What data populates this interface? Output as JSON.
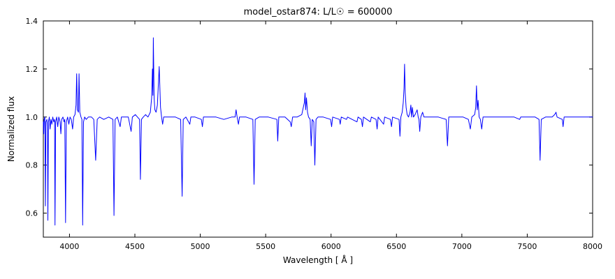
{
  "chart_data": {
    "type": "line",
    "title": "model_ostar874: L/L☉ = 600000",
    "xlabel": "Wavelength [ Å ]",
    "ylabel": "Normalized flux",
    "xlim": [
      3800,
      8000
    ],
    "ylim": [
      0.5,
      1.4
    ],
    "xticks": [
      4000,
      4500,
      5000,
      5500,
      6000,
      6500,
      7000,
      7500,
      8000
    ],
    "xtick_labels": [
      "4000",
      "4500",
      "5000",
      "5500",
      "6000",
      "6500",
      "7000",
      "7500",
      "8000"
    ],
    "yticks": [
      0.6,
      0.8,
      1.0,
      1.2,
      1.4
    ],
    "ytick_labels": [
      "0.6",
      "0.8",
      "1.0",
      "1.2",
      "1.4"
    ],
    "grid": false,
    "legend": null,
    "line_color": "#0000ff",
    "axis_color": "#000000",
    "background": "#ffffff",
    "series_name": "normalized-spectrum",
    "points": [
      [
        3800,
        0.98
      ],
      [
        3803,
        0.93
      ],
      [
        3806,
        0.99
      ],
      [
        3812,
        1.0
      ],
      [
        3816,
        0.63
      ],
      [
        3820,
        0.98
      ],
      [
        3827,
        0.99
      ],
      [
        3832,
        0.96
      ],
      [
        3835,
        0.57
      ],
      [
        3839,
        0.98
      ],
      [
        3846,
        1.0
      ],
      [
        3852,
        0.95
      ],
      [
        3858,
        0.99
      ],
      [
        3865,
        0.97
      ],
      [
        3872,
        1.0
      ],
      [
        3880,
        0.98
      ],
      [
        3886,
        0.99
      ],
      [
        3889,
        0.55
      ],
      [
        3894,
        0.98
      ],
      [
        3902,
        1.0
      ],
      [
        3910,
        0.96
      ],
      [
        3918,
        1.0
      ],
      [
        3928,
        0.98
      ],
      [
        3934,
        0.93
      ],
      [
        3940,
        0.99
      ],
      [
        3950,
        1.0
      ],
      [
        3958,
        0.98
      ],
      [
        3964,
        0.99
      ],
      [
        3970,
        0.56
      ],
      [
        3976,
        0.98
      ],
      [
        3986,
        1.0
      ],
      [
        3995,
        0.97
      ],
      [
        4004,
        1.0
      ],
      [
        4014,
        0.99
      ],
      [
        4024,
        0.95
      ],
      [
        4032,
        1.0
      ],
      [
        4042,
        1.01
      ],
      [
        4050,
        1.05
      ],
      [
        4055,
        1.18
      ],
      [
        4061,
        1.03
      ],
      [
        4068,
        1.02
      ],
      [
        4073,
        1.18
      ],
      [
        4079,
        1.02
      ],
      [
        4088,
        1.0
      ],
      [
        4095,
        0.99
      ],
      [
        4101,
        0.55
      ],
      [
        4107,
        0.98
      ],
      [
        4116,
        1.0
      ],
      [
        4128,
        0.99
      ],
      [
        4144,
        1.0
      ],
      [
        4168,
        1.0
      ],
      [
        4186,
        0.99
      ],
      [
        4200,
        0.82
      ],
      [
        4212,
        0.99
      ],
      [
        4230,
        1.0
      ],
      [
        4262,
        0.99
      ],
      [
        4300,
        1.0
      ],
      [
        4332,
        0.99
      ],
      [
        4340,
        0.59
      ],
      [
        4349,
        0.99
      ],
      [
        4366,
        1.0
      ],
      [
        4387,
        0.96
      ],
      [
        4397,
        1.0
      ],
      [
        4420,
        1.0
      ],
      [
        4450,
        1.0
      ],
      [
        4471,
        0.94
      ],
      [
        4481,
        1.0
      ],
      [
        4504,
        1.01
      ],
      [
        4520,
        1.0
      ],
      [
        4536,
        0.99
      ],
      [
        4542,
        0.74
      ],
      [
        4550,
        0.99
      ],
      [
        4564,
        1.0
      ],
      [
        4582,
        1.01
      ],
      [
        4600,
        1.0
      ],
      [
        4618,
        1.02
      ],
      [
        4628,
        1.08
      ],
      [
        4634,
        1.2
      ],
      [
        4638,
        1.09
      ],
      [
        4641,
        1.33
      ],
      [
        4647,
        1.08
      ],
      [
        4653,
        1.03
      ],
      [
        4662,
        1.02
      ],
      [
        4672,
        1.05
      ],
      [
        4686,
        1.21
      ],
      [
        4696,
        1.04
      ],
      [
        4704,
        1.0
      ],
      [
        4712,
        0.97
      ],
      [
        4720,
        1.0
      ],
      [
        4760,
        1.0
      ],
      [
        4810,
        1.0
      ],
      [
        4850,
        0.99
      ],
      [
        4861,
        0.67
      ],
      [
        4870,
        0.99
      ],
      [
        4890,
        1.0
      ],
      [
        4920,
        0.97
      ],
      [
        4928,
        1.0
      ],
      [
        4960,
        1.0
      ],
      [
        5008,
        0.99
      ],
      [
        5016,
        0.96
      ],
      [
        5024,
        1.0
      ],
      [
        5060,
        1.0
      ],
      [
        5120,
        1.0
      ],
      [
        5180,
        0.99
      ],
      [
        5240,
        1.0
      ],
      [
        5266,
        1.0
      ],
      [
        5274,
        1.03
      ],
      [
        5282,
        1.0
      ],
      [
        5292,
        0.97
      ],
      [
        5300,
        1.0
      ],
      [
        5350,
        1.0
      ],
      [
        5402,
        0.99
      ],
      [
        5411,
        0.72
      ],
      [
        5420,
        0.99
      ],
      [
        5450,
        1.0
      ],
      [
        5520,
        1.0
      ],
      [
        5586,
        0.99
      ],
      [
        5592,
        0.9
      ],
      [
        5600,
        1.0
      ],
      [
        5648,
        1.0
      ],
      [
        5688,
        0.98
      ],
      [
        5696,
        0.96
      ],
      [
        5706,
        1.0
      ],
      [
        5740,
        1.0
      ],
      [
        5776,
        1.01
      ],
      [
        5788,
        1.04
      ],
      [
        5796,
        1.06
      ],
      [
        5801,
        1.1
      ],
      [
        5806,
        1.03
      ],
      [
        5812,
        1.08
      ],
      [
        5820,
        1.02
      ],
      [
        5828,
        1.0
      ],
      [
        5840,
        0.99
      ],
      [
        5848,
        0.88
      ],
      [
        5856,
        0.99
      ],
      [
        5868,
        0.98
      ],
      [
        5876,
        0.8
      ],
      [
        5885,
        0.99
      ],
      [
        5900,
        1.0
      ],
      [
        5940,
        1.0
      ],
      [
        5996,
        0.99
      ],
      [
        6004,
        0.96
      ],
      [
        6012,
        1.0
      ],
      [
        6064,
        0.99
      ],
      [
        6070,
        0.97
      ],
      [
        6078,
        1.0
      ],
      [
        6118,
        0.99
      ],
      [
        6126,
        1.0
      ],
      [
        6198,
        0.98
      ],
      [
        6206,
        1.0
      ],
      [
        6232,
        0.99
      ],
      [
        6240,
        0.96
      ],
      [
        6248,
        1.0
      ],
      [
        6300,
        0.98
      ],
      [
        6308,
        1.0
      ],
      [
        6344,
        0.99
      ],
      [
        6352,
        0.95
      ],
      [
        6360,
        1.0
      ],
      [
        6402,
        0.97
      ],
      [
        6410,
        1.0
      ],
      [
        6454,
        0.99
      ],
      [
        6462,
        0.96
      ],
      [
        6470,
        1.0
      ],
      [
        6520,
        0.99
      ],
      [
        6527,
        0.92
      ],
      [
        6534,
        1.0
      ],
      [
        6544,
        1.02
      ],
      [
        6552,
        1.06
      ],
      [
        6558,
        1.12
      ],
      [
        6562,
        1.22
      ],
      [
        6567,
        1.1
      ],
      [
        6574,
        1.04
      ],
      [
        6582,
        1.01
      ],
      [
        6592,
        1.0
      ],
      [
        6604,
        1.02
      ],
      [
        6610,
        1.05
      ],
      [
        6616,
        1.0
      ],
      [
        6622,
        1.04
      ],
      [
        6630,
        1.0
      ],
      [
        6642,
        1.01
      ],
      [
        6658,
        1.03
      ],
      [
        6666,
        1.0
      ],
      [
        6672,
        0.99
      ],
      [
        6678,
        0.94
      ],
      [
        6686,
        1.0
      ],
      [
        6700,
        1.02
      ],
      [
        6710,
        1.0
      ],
      [
        6760,
        1.0
      ],
      [
        6820,
        1.0
      ],
      [
        6880,
        0.99
      ],
      [
        6890,
        0.88
      ],
      [
        6900,
        1.0
      ],
      [
        6950,
        1.0
      ],
      [
        7010,
        1.0
      ],
      [
        7050,
        0.99
      ],
      [
        7065,
        0.95
      ],
      [
        7076,
        1.0
      ],
      [
        7098,
        1.01
      ],
      [
        7106,
        1.04
      ],
      [
        7112,
        1.13
      ],
      [
        7118,
        1.03
      ],
      [
        7124,
        1.07
      ],
      [
        7132,
        1.0
      ],
      [
        7142,
        0.99
      ],
      [
        7152,
        0.95
      ],
      [
        7162,
        1.0
      ],
      [
        7210,
        1.0
      ],
      [
        7270,
        1.0
      ],
      [
        7340,
        1.0
      ],
      [
        7400,
        1.0
      ],
      [
        7442,
        0.99
      ],
      [
        7450,
        1.0
      ],
      [
        7520,
        1.0
      ],
      [
        7560,
        1.0
      ],
      [
        7590,
        0.99
      ],
      [
        7598,
        0.82
      ],
      [
        7607,
        0.99
      ],
      [
        7640,
        1.0
      ],
      [
        7690,
        1.0
      ],
      [
        7710,
        1.01
      ],
      [
        7720,
        1.02
      ],
      [
        7728,
        1.0
      ],
      [
        7768,
        0.99
      ],
      [
        7774,
        0.96
      ],
      [
        7782,
        1.0
      ],
      [
        7840,
        1.0
      ],
      [
        7900,
        1.0
      ],
      [
        7950,
        1.0
      ],
      [
        8000,
        1.0
      ]
    ]
  }
}
